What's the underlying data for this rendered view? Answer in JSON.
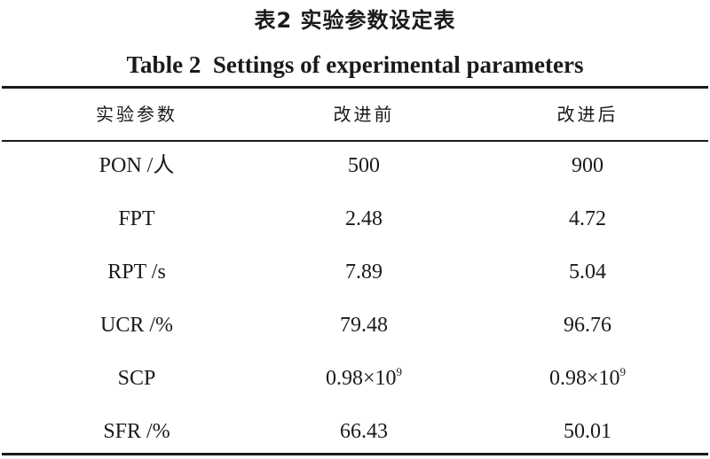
{
  "title_cn": "表2  实验参数设定表",
  "title_en": "Table 2  Settings of experimental parameters",
  "headers": [
    "实验参数",
    "改进前",
    "改进后"
  ],
  "rows": [
    {
      "param": "PON /人",
      "before": "500",
      "after": "900"
    },
    {
      "param": "FPT",
      "before": "2.48",
      "after": "4.72"
    },
    {
      "param": "RPT /s",
      "before": "7.89",
      "after": "5.04"
    },
    {
      "param": "UCR /%",
      "before": "79.48",
      "after": "96.76"
    },
    {
      "param": "SCP",
      "before_base": "0.98×10",
      "before_exp": "9",
      "after_base": "0.98×10",
      "after_exp": "9"
    },
    {
      "param": "SFR /%",
      "before": "66.43",
      "after": "50.01"
    }
  ]
}
